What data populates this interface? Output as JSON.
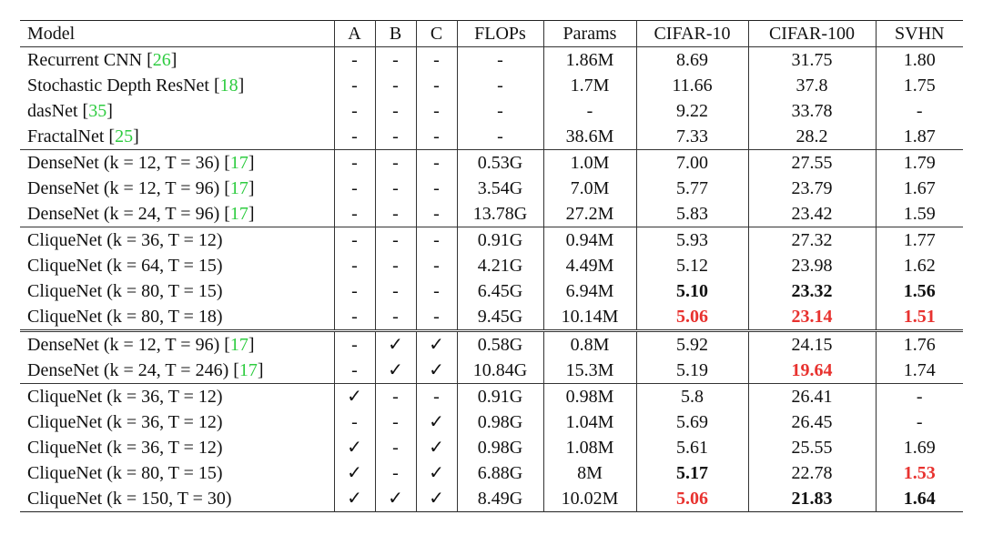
{
  "header": [
    "Model",
    "A",
    "B",
    "C",
    "FLOPs",
    "Params",
    "CIFAR-10",
    "CIFAR-100",
    "SVHN"
  ],
  "rows": [
    {
      "group_start": false,
      "part_start": false,
      "name": "Recurrent CNN",
      "cite": "26",
      "a": "-",
      "b": "-",
      "c": "-",
      "flops": "-",
      "params": "1.86M",
      "c10": {
        "v": "8.69",
        "s": ""
      },
      "c100": {
        "v": "31.75",
        "s": ""
      },
      "svhn": {
        "v": "1.80",
        "s": ""
      }
    },
    {
      "group_start": false,
      "part_start": false,
      "name": "Stochastic Depth ResNet",
      "cite": "18",
      "a": "-",
      "b": "-",
      "c": "-",
      "flops": "-",
      "params": "1.7M",
      "c10": {
        "v": "11.66",
        "s": ""
      },
      "c100": {
        "v": "37.8",
        "s": ""
      },
      "svhn": {
        "v": "1.75",
        "s": ""
      }
    },
    {
      "group_start": false,
      "part_start": false,
      "name": "dasNet",
      "cite": "35",
      "a": "-",
      "b": "-",
      "c": "-",
      "flops": "-",
      "params": "-",
      "c10": {
        "v": "9.22",
        "s": ""
      },
      "c100": {
        "v": "33.78",
        "s": ""
      },
      "svhn": {
        "v": "-",
        "s": ""
      }
    },
    {
      "group_start": false,
      "part_start": false,
      "name": "FractalNet",
      "cite": "25",
      "a": "-",
      "b": "-",
      "c": "-",
      "flops": "-",
      "params": "38.6M",
      "c10": {
        "v": "7.33",
        "s": ""
      },
      "c100": {
        "v": "28.2",
        "s": ""
      },
      "svhn": {
        "v": "1.87",
        "s": ""
      }
    },
    {
      "group_start": true,
      "part_start": false,
      "name": "DenseNet (k = 12, T = 36)",
      "cite": "17",
      "a": "-",
      "b": "-",
      "c": "-",
      "flops": "0.53G",
      "params": "1.0M",
      "c10": {
        "v": "7.00",
        "s": ""
      },
      "c100": {
        "v": "27.55",
        "s": ""
      },
      "svhn": {
        "v": "1.79",
        "s": ""
      }
    },
    {
      "group_start": false,
      "part_start": false,
      "name": "DenseNet (k = 12, T = 96)",
      "cite": "17",
      "a": "-",
      "b": "-",
      "c": "-",
      "flops": "3.54G",
      "params": "7.0M",
      "c10": {
        "v": "5.77",
        "s": ""
      },
      "c100": {
        "v": "23.79",
        "s": ""
      },
      "svhn": {
        "v": "1.67",
        "s": ""
      }
    },
    {
      "group_start": false,
      "part_start": false,
      "name": "DenseNet (k = 24, T = 96)",
      "cite": "17",
      "a": "-",
      "b": "-",
      "c": "-",
      "flops": "13.78G",
      "params": "27.2M",
      "c10": {
        "v": "5.83",
        "s": ""
      },
      "c100": {
        "v": "23.42",
        "s": ""
      },
      "svhn": {
        "v": "1.59",
        "s": ""
      }
    },
    {
      "group_start": true,
      "part_start": false,
      "name": "CliqueNet (k = 36, T = 12)",
      "cite": "",
      "a": "-",
      "b": "-",
      "c": "-",
      "flops": "0.91G",
      "params": "0.94M",
      "c10": {
        "v": "5.93",
        "s": ""
      },
      "c100": {
        "v": "27.32",
        "s": ""
      },
      "svhn": {
        "v": "1.77",
        "s": ""
      }
    },
    {
      "group_start": false,
      "part_start": false,
      "name": "CliqueNet (k = 64, T = 15)",
      "cite": "",
      "a": "-",
      "b": "-",
      "c": "-",
      "flops": "4.21G",
      "params": "4.49M",
      "c10": {
        "v": "5.12",
        "s": ""
      },
      "c100": {
        "v": "23.98",
        "s": ""
      },
      "svhn": {
        "v": "1.62",
        "s": ""
      }
    },
    {
      "group_start": false,
      "part_start": false,
      "name": "CliqueNet (k = 80, T = 15)",
      "cite": "",
      "a": "-",
      "b": "-",
      "c": "-",
      "flops": "6.45G",
      "params": "6.94M",
      "c10": {
        "v": "5.10",
        "s": "bold"
      },
      "c100": {
        "v": "23.32",
        "s": "bold"
      },
      "svhn": {
        "v": "1.56",
        "s": "bold"
      }
    },
    {
      "group_start": false,
      "part_start": false,
      "name": "CliqueNet (k = 80, T = 18)",
      "cite": "",
      "a": "-",
      "b": "-",
      "c": "-",
      "flops": "9.45G",
      "params": "10.14M",
      "c10": {
        "v": "5.06",
        "s": "red"
      },
      "c100": {
        "v": "23.14",
        "s": "red"
      },
      "svhn": {
        "v": "1.51",
        "s": "red"
      }
    },
    {
      "group_start": false,
      "part_start": true,
      "name": "DenseNet (k = 12, T = 96)",
      "cite": "17",
      "a": "-",
      "b": "✓",
      "c": "✓",
      "flops": "0.58G",
      "params": "0.8M",
      "c10": {
        "v": "5.92",
        "s": ""
      },
      "c100": {
        "v": "24.15",
        "s": ""
      },
      "svhn": {
        "v": "1.76",
        "s": ""
      }
    },
    {
      "group_start": false,
      "part_start": false,
      "name": "DenseNet (k = 24, T = 246)",
      "cite": "17",
      "a": "-",
      "b": "✓",
      "c": "✓",
      "flops": "10.84G",
      "params": "15.3M",
      "c10": {
        "v": "5.19",
        "s": ""
      },
      "c100": {
        "v": "19.64",
        "s": "red"
      },
      "svhn": {
        "v": "1.74",
        "s": ""
      }
    },
    {
      "group_start": true,
      "part_start": false,
      "name": "CliqueNet (k = 36, T = 12)",
      "cite": "",
      "a": "✓",
      "b": "-",
      "c": "-",
      "flops": "0.91G",
      "params": "0.98M",
      "c10": {
        "v": "5.8",
        "s": ""
      },
      "c100": {
        "v": "26.41",
        "s": ""
      },
      "svhn": {
        "v": "-",
        "s": ""
      }
    },
    {
      "group_start": false,
      "part_start": false,
      "name": "CliqueNet (k = 36, T = 12)",
      "cite": "",
      "a": "-",
      "b": "-",
      "c": "✓",
      "flops": "0.98G",
      "params": "1.04M",
      "c10": {
        "v": "5.69",
        "s": ""
      },
      "c100": {
        "v": "26.45",
        "s": ""
      },
      "svhn": {
        "v": "-",
        "s": ""
      }
    },
    {
      "group_start": false,
      "part_start": false,
      "name": "CliqueNet (k = 36, T = 12)",
      "cite": "",
      "a": "✓",
      "b": "-",
      "c": "✓",
      "flops": "0.98G",
      "params": "1.08M",
      "c10": {
        "v": "5.61",
        "s": ""
      },
      "c100": {
        "v": "25.55",
        "s": ""
      },
      "svhn": {
        "v": "1.69",
        "s": ""
      }
    },
    {
      "group_start": false,
      "part_start": false,
      "name": "CliqueNet (k = 80, T = 15)",
      "cite": "",
      "a": "✓",
      "b": "-",
      "c": "✓",
      "flops": "6.88G",
      "params": "8M",
      "c10": {
        "v": "5.17",
        "s": "bold"
      },
      "c100": {
        "v": "22.78",
        "s": ""
      },
      "svhn": {
        "v": "1.53",
        "s": "red"
      }
    },
    {
      "group_start": false,
      "part_start": false,
      "name": "CliqueNet (k = 150, T = 30)",
      "cite": "",
      "a": "✓",
      "b": "✓",
      "c": "✓",
      "flops": "8.49G",
      "params": "10.02M",
      "c10": {
        "v": "5.06",
        "s": "red"
      },
      "c100": {
        "v": "21.83",
        "s": "bold"
      },
      "svhn": {
        "v": "1.64",
        "s": "bold"
      }
    }
  ],
  "colors": {
    "citation": "#2ecc40",
    "best": "#e8322f",
    "text": "#111111"
  }
}
